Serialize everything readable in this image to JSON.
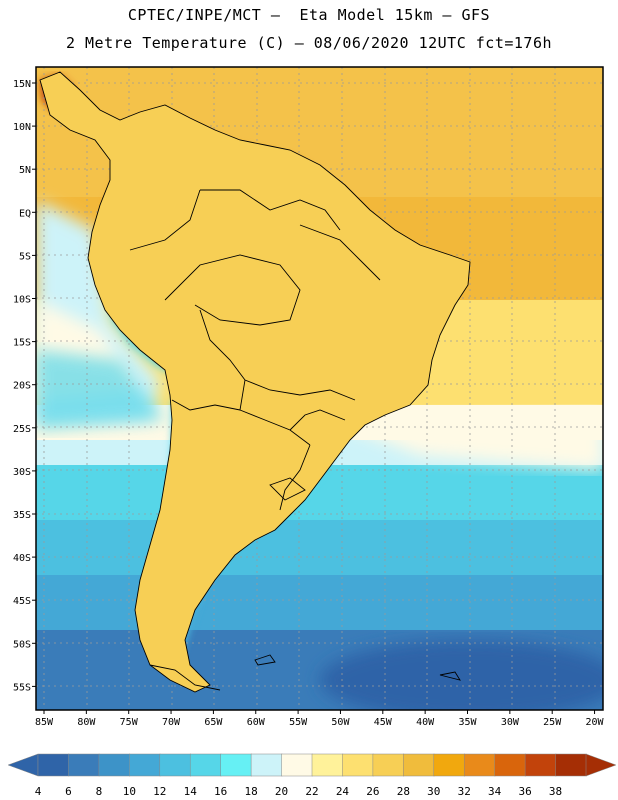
{
  "header": {
    "title_line1": "CPTEC/INPE/MCT –  Eta Model 15km – GFS",
    "title_line2": "2 Metre Temperature (C) – 08/06/2020 12UTC fct=176h"
  },
  "axes": {
    "lat_labels": [
      "15N",
      "10N",
      "5N",
      "EQ",
      "5S",
      "10S",
      "15S",
      "20S",
      "25S",
      "30S",
      "35S",
      "40S",
      "45S",
      "50S",
      "55S"
    ],
    "lon_labels": [
      "85W",
      "80W",
      "75W",
      "70W",
      "65W",
      "60W",
      "55W",
      "50W",
      "45W",
      "40W",
      "35W",
      "30W",
      "25W",
      "20W"
    ]
  },
  "colorbar": {
    "labels": [
      "4",
      "6",
      "8",
      "10",
      "12",
      "14",
      "16",
      "18",
      "20",
      "22",
      "24",
      "26",
      "28",
      "30",
      "32",
      "34",
      "36",
      "38"
    ],
    "colors": [
      "#2f64a8",
      "#3a7cb9",
      "#3d93c8",
      "#44a8d6",
      "#4cc0e0",
      "#56d6e8",
      "#66f0f4",
      "#cdf3f9",
      "#fffae6",
      "#fff29a",
      "#fde070",
      "#f7cf55",
      "#f0bc3c",
      "#f1a80e",
      "#e98a1a",
      "#d9650c",
      "#c2430b",
      "#a52e05"
    ]
  }
}
